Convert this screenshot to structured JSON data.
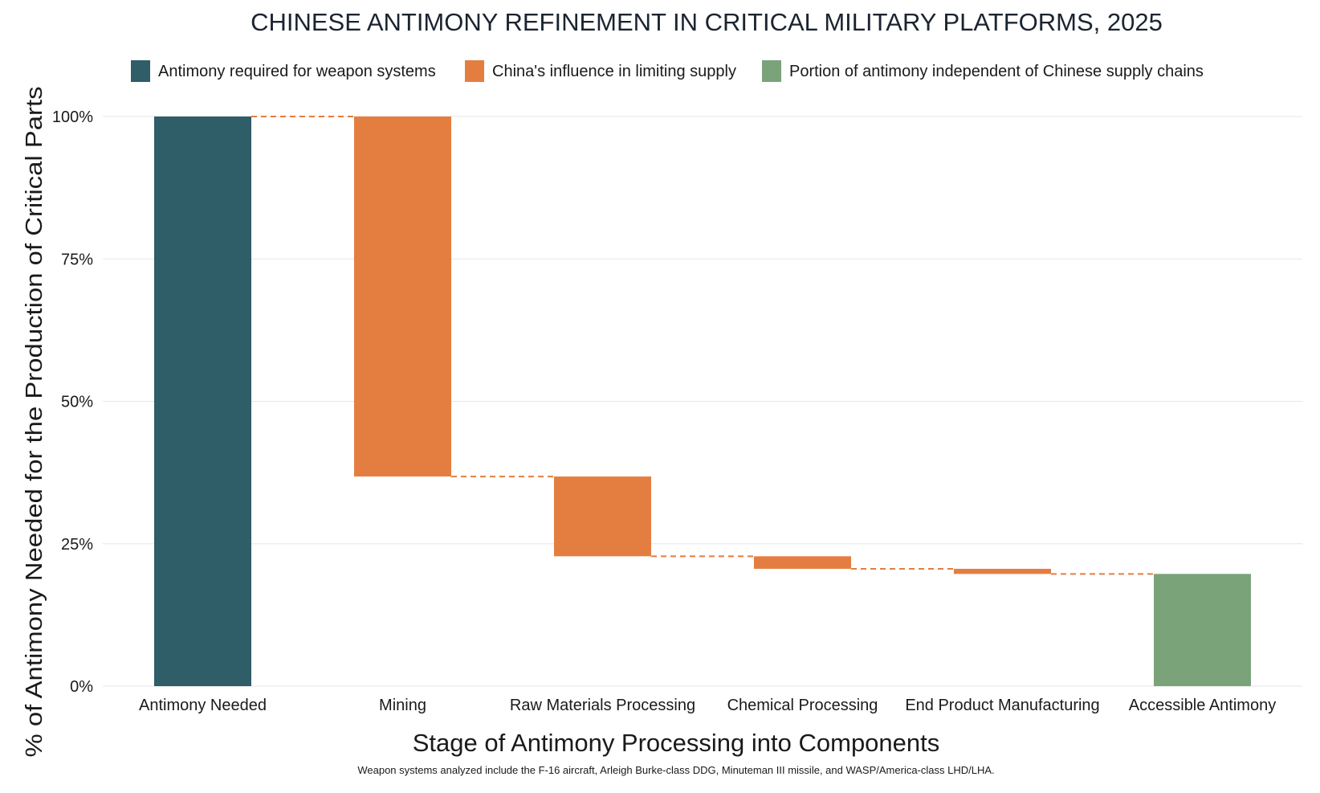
{
  "chart_data": {
    "type": "bar",
    "subtype": "waterfall",
    "title": "CHINESE ANTIMONY REFINEMENT IN CRITICAL MILITARY PLATFORMS, 2025",
    "xlabel": "Stage of Antimony Processing into Components",
    "ylabel": "% of Antimony Needed for the Production of Critical Parts",
    "footnote": "Weapon systems analyzed include the F-16 aircraft, Arleigh Burke-class DDG, Minuteman III missile, and WASP/America-class LHD/LHA.",
    "ylim": [
      0,
      100
    ],
    "yticks": [
      0,
      25,
      50,
      75,
      100
    ],
    "ytick_labels": [
      "0%",
      "25%",
      "50%",
      "75%",
      "100%"
    ],
    "grid": "horizontal",
    "legend_position": "top",
    "legend": [
      {
        "label": "Antimony required for weapon systems",
        "color": "#2f5d68"
      },
      {
        "label": "China's influence in limiting supply",
        "color": "#e47e40"
      },
      {
        "label": "Portion of antimony independent of Chinese supply chains",
        "color": "#7ba37a"
      }
    ],
    "connector_color": "#e47e40",
    "categories": [
      "Antimony Needed",
      "Mining",
      "Raw Materials Processing",
      "Chemical Processing",
      "End Product Manufacturing",
      "Accessible Antimony"
    ],
    "bars": [
      {
        "category": "Antimony Needed",
        "start": 0,
        "end": 100,
        "kind": "total",
        "color": "#2f5d68"
      },
      {
        "category": "Mining",
        "start": 100,
        "end": 36.8,
        "kind": "decrease",
        "color": "#e47e40"
      },
      {
        "category": "Raw Materials Processing",
        "start": 36.8,
        "end": 22.8,
        "kind": "decrease",
        "color": "#e47e40"
      },
      {
        "category": "Chemical Processing",
        "start": 22.8,
        "end": 20.6,
        "kind": "decrease",
        "color": "#e47e40"
      },
      {
        "category": "End Product Manufacturing",
        "start": 20.6,
        "end": 19.7,
        "kind": "decrease",
        "color": "#e47e40"
      },
      {
        "category": "Accessible Antimony",
        "start": 0,
        "end": 19.7,
        "kind": "total",
        "color": "#7ba37a"
      }
    ]
  }
}
